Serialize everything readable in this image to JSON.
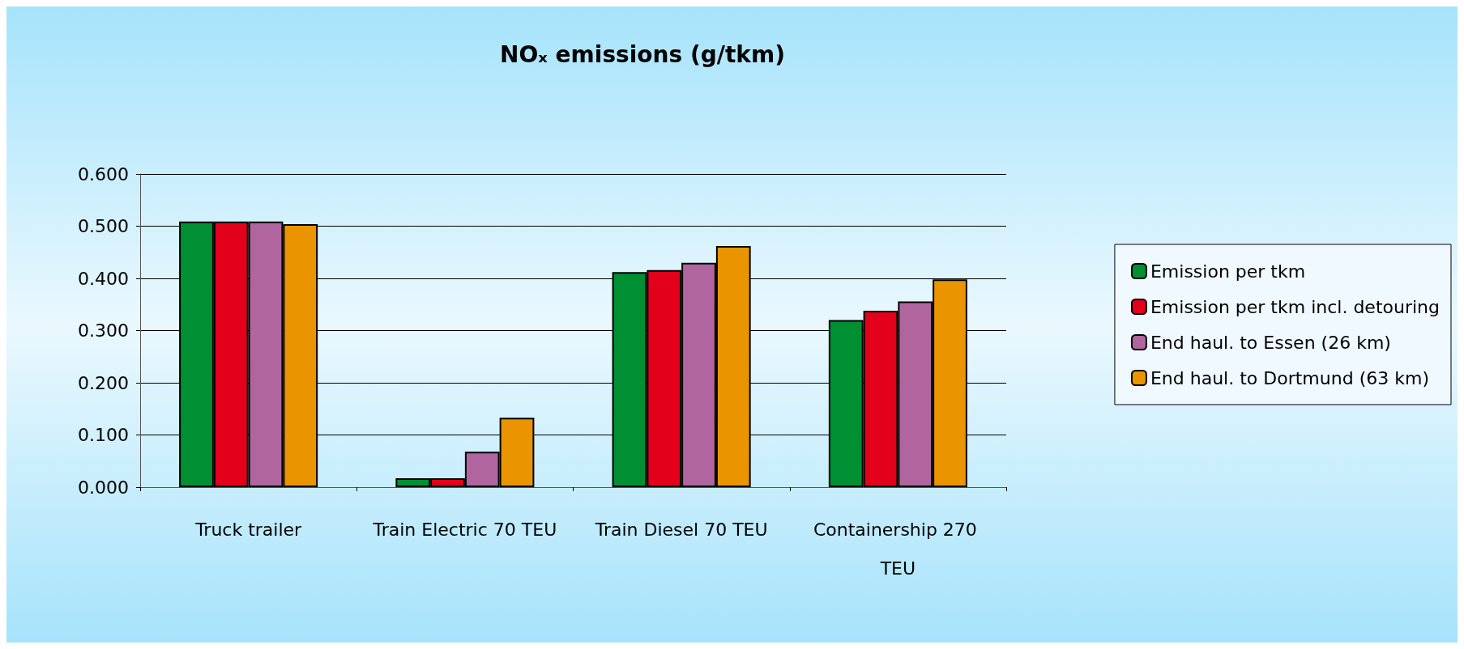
{
  "chart_data": {
    "type": "bar",
    "title": "NOₓ emissions (g/tkm)",
    "categories": [
      "Truck trailer",
      "Train Electric 70 TEU",
      "Train Diesel 70 TEU",
      "Containership 270 TEU"
    ],
    "series": [
      {
        "name": "Emission per tkm",
        "color": "#008f33",
        "values": [
          0.509,
          0.017,
          0.412,
          0.32
        ]
      },
      {
        "name": "Emission per tkm incl. detouring",
        "color": "#e2001a",
        "values": [
          0.509,
          0.017,
          0.416,
          0.338
        ]
      },
      {
        "name": "End haul. to Essen (26 km)",
        "color": "#b0659f",
        "values": [
          0.509,
          0.068,
          0.43,
          0.356
        ]
      },
      {
        "name": "End haul. to Dortmund (63 km)",
        "color": "#ea9500",
        "values": [
          0.504,
          0.133,
          0.462,
          0.398
        ]
      }
    ],
    "ylim": [
      0,
      0.6
    ],
    "yticks": [
      {
        "value": 0,
        "label": "0.000"
      },
      {
        "value": 0.1,
        "label": "0.100"
      },
      {
        "value": 0.2,
        "label": "0.200"
      },
      {
        "value": 0.3,
        "label": "0.300"
      },
      {
        "value": 0.4,
        "label": "0.400"
      },
      {
        "value": 0.5,
        "label": "0.500"
      },
      {
        "value": 0.6,
        "label": "0.600"
      }
    ],
    "grid": "y",
    "legend": "right"
  }
}
